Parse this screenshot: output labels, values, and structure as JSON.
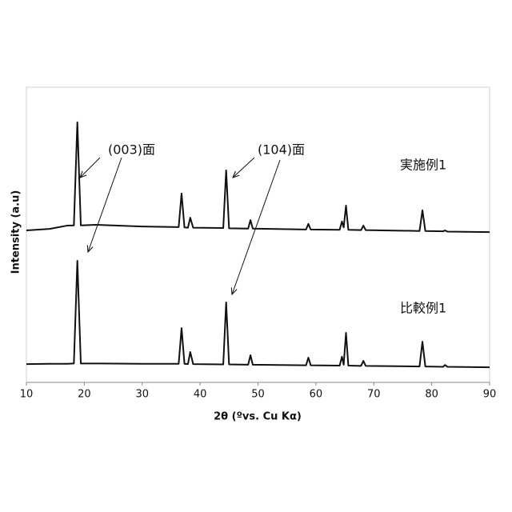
{
  "chart_data": {
    "type": "line",
    "xlabel": "2θ (ºvs. Cu Kα)",
    "ylabel": "Intensity (a.u)",
    "xlim": [
      10,
      90
    ],
    "xticks": [
      10,
      20,
      30,
      40,
      50,
      60,
      70,
      80,
      90
    ],
    "ylim": [
      0,
      100
    ],
    "annotations": [
      "(003)面",
      "(104)面"
    ],
    "x": [
      10,
      14,
      17,
      18.2,
      18.8,
      19.4,
      22,
      30,
      36.3,
      36.8,
      37.3,
      37.9,
      38.3,
      38.8,
      44.0,
      44.5,
      45.0,
      48.3,
      48.7,
      49.1,
      58.3,
      58.7,
      59.1,
      64.1,
      64.5,
      64.8,
      65.2,
      65.6,
      67.8,
      68.2,
      68.6,
      77.9,
      78.4,
      78.9,
      82.0,
      82.3,
      82.7,
      90
    ],
    "series": [
      {
        "name": "実施例1",
        "color": "#111111",
        "values": [
          51.5,
          52,
          53.1,
          53.2,
          88.1,
          53.2,
          53.4,
          52.8,
          52.6,
          64,
          52.5,
          52.4,
          55.8,
          52.4,
          52.3,
          71.8,
          52.2,
          52.1,
          55,
          52.1,
          51.8,
          53.7,
          51.8,
          51.7,
          54.5,
          52.5,
          59.9,
          51.7,
          51.6,
          53.1,
          51.6,
          51.3,
          58.3,
          51.3,
          51.2,
          51.5,
          51.1,
          50.9
        ]
      },
      {
        "name": "比較例1",
        "color": "#111111",
        "values": [
          6.2,
          6.3,
          6.3,
          6.4,
          41.2,
          6.4,
          6.4,
          6.3,
          6.3,
          18.4,
          6.3,
          6.2,
          10.3,
          6.2,
          6.1,
          27.1,
          6.1,
          6.0,
          9.2,
          6.0,
          5.8,
          8.4,
          5.8,
          5.7,
          8.7,
          6.0,
          16.8,
          5.7,
          5.6,
          7.3,
          5.6,
          5.4,
          13.8,
          5.4,
          5.3,
          5.9,
          5.3,
          5.1
        ]
      }
    ]
  }
}
